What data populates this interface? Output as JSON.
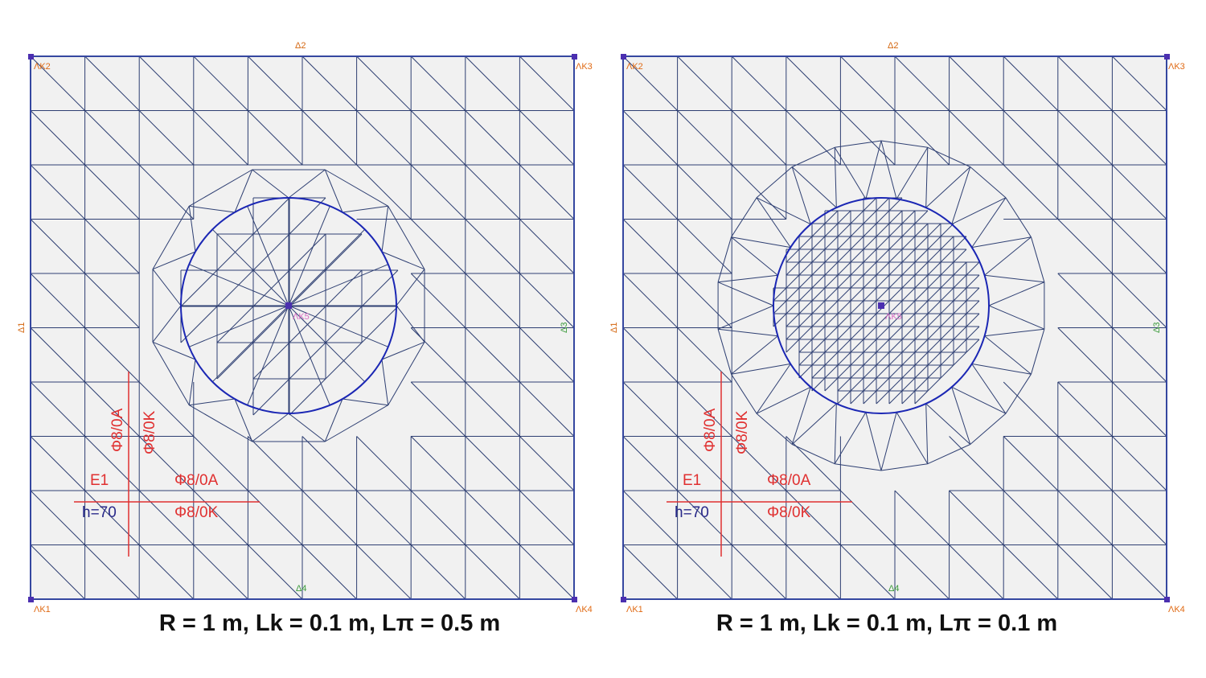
{
  "colors": {
    "plate_fill": "#f1f1f1",
    "mesh": "#2e3f72",
    "border": "#3547a0",
    "circle": "#1b27b4",
    "node": "#4b2fb0",
    "rebar": "#e03030",
    "thickness": "#2a2a8a",
    "corner_label": "#e06a14",
    "side_label_orange": "#d4660f",
    "side_label_green": "#3a9a3a",
    "center_label": "#d96cc4"
  },
  "panels": [
    {
      "corner_labels": {
        "top_left": "ΛK2",
        "top_right": "ΛK3",
        "bottom_left": "ΛK1",
        "bottom_right": "ΛK4"
      },
      "side_labels": {
        "top": "Δ2",
        "left": "Δ1",
        "right": "Δ3",
        "bottom": "Δ4"
      },
      "center_label": "ΛK5",
      "rebar_vertical": [
        "Φ8/0A",
        "Φ8/0K"
      ],
      "element_label": "E1",
      "thickness_label": "h=70",
      "rebar_horizontal": [
        "Φ8/0A",
        "Φ8/0K"
      ],
      "caption": "R = 1 m, Lk = 0.1 m, Lπ = 0.5 m",
      "mesh": {
        "radius_m": 1,
        "Lk_m": 0.1,
        "Lp_m": 0.5
      }
    },
    {
      "corner_labels": {
        "top_left": "ΛK2",
        "top_right": "ΛK3",
        "bottom_left": "ΛK1",
        "bottom_right": "ΛK4"
      },
      "side_labels": {
        "top": "Δ2",
        "left": "Δ1",
        "right": "Δ3",
        "bottom": "Δ4"
      },
      "center_label": "ΛK5",
      "rebar_vertical": [
        "Φ8/0A",
        "Φ8/0K"
      ],
      "element_label": "E1",
      "thickness_label": "h=70",
      "rebar_horizontal": [
        "Φ8/0A",
        "Φ8/0K"
      ],
      "caption": "R = 1 m, Lk = 0.1 m, Lπ = 0.1 m",
      "mesh": {
        "radius_m": 1,
        "Lk_m": 0.1,
        "Lp_m": 0.1
      }
    }
  ]
}
